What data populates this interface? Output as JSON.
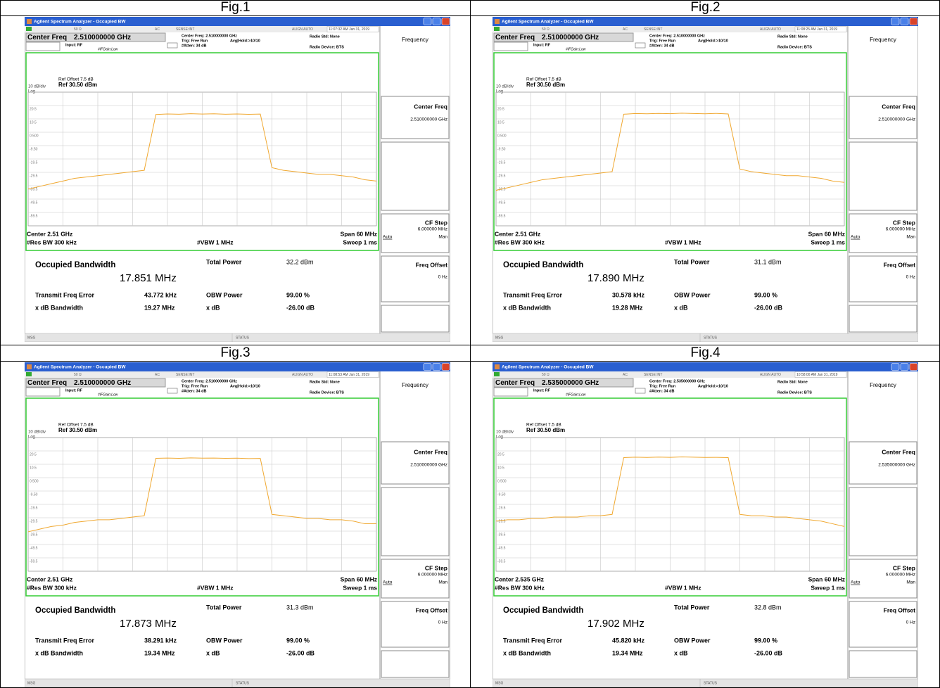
{
  "common": {
    "window_title": "Agilent Spectrum Analyzer - Occupied BW",
    "status_items": [
      "50 Ω",
      "AC",
      "SENSE:INT",
      "ALIGN AUTO"
    ],
    "center_freq_label": "Center Freq",
    "input": "Input: RF",
    "if_gain": "#IFGain:Low",
    "trig": "Trig: Free Run",
    "avg_hold": "Avg|Hold:>10/10",
    "atten": "#Atten: 34 dB",
    "radio_std": "Radio Std: None",
    "radio_device": "Radio Device: BTS",
    "ref_offset": "Ref Offset 7.5 dB",
    "scale": "10 dB/div",
    "ref_level": "Ref 30.50 dBm",
    "log": "Log",
    "res_bw": "#Res BW 300 kHz",
    "vbw": "#VBW 1 MHz",
    "span": "Span 60 MHz",
    "sweep": "Sweep 1 ms",
    "occupied_bw_label": "Occupied Bandwidth",
    "total_power_label": "Total Power",
    "freq_error_label": "Transmit Freq Error",
    "obw_power_label": "OBW Power",
    "obw_power": "99.00 %",
    "xdb_bw_label": "x dB Bandwidth",
    "xdb_label": "x dB",
    "xdb": "-26.00 dB",
    "softkeys": {
      "menu": "Frequency",
      "center_freq": "Center Freq",
      "cf_step": "CF Step",
      "cf_step_value": "6.000000 MHz",
      "auto": "Auto",
      "man": "Man",
      "freq_offset": "Freq Offset",
      "freq_offset_value": "0 Hz"
    },
    "msg": "MSG",
    "status": "STATUS",
    "ylim": [
      -69.5,
      30.5
    ],
    "yticks": [
      20.5,
      10.5,
      {
        "value": 0.5,
        "label": "0.500"
      },
      {
        "value": -9.5,
        "label": "-9.50"
      },
      -19.5,
      -29.5,
      -39.5,
      -49.5,
      -59.5
    ],
    "trace_color": "#f0a830",
    "grid": true
  },
  "panels": [
    {
      "figure": "Fig.1",
      "timestamp": "11:07:32 AM Jan 31, 2019",
      "center_freq": "2.510000000 GHz",
      "center_freq_setting": "Center Freq: 2.510000000 GHz",
      "center": "Center 2.51 GHz",
      "occupied_bw": "17.851 MHz",
      "total_power": "32.2 dBm",
      "freq_error": "43.772 kHz",
      "xdb_bw": "19.27 MHz",
      "trace": [
        -42,
        -40,
        -38,
        -36,
        -34,
        -33,
        -32,
        -31,
        -30,
        -29,
        -28,
        13.8,
        14.2,
        14.0,
        14.4,
        14.1,
        14.3,
        14.0,
        14.2,
        13.9,
        14.1,
        -26,
        -28,
        -29,
        -30,
        -31,
        -31,
        -32,
        -33,
        -35,
        -36
      ]
    },
    {
      "figure": "Fig.2",
      "timestamp": "11:08:25 AM Jan 31, 2019",
      "center_freq": "2.510000000 GHz",
      "center_freq_setting": "Center Freq: 2.510000000 GHz",
      "center": "Center 2.51 GHz",
      "occupied_bw": "17.890 MHz",
      "total_power": "31.1 dBm",
      "freq_error": "30.578 kHz",
      "xdb_bw": "19.28 MHz",
      "trace": [
        -43,
        -41,
        -39,
        -37,
        -35,
        -34,
        -33,
        -32,
        -31,
        -30,
        -29,
        14.0,
        14.5,
        14.3,
        14.6,
        14.4,
        14.8,
        14.5,
        14.3,
        14.6,
        14.2,
        -27,
        -29,
        -30,
        -31,
        -32,
        -32,
        -33,
        -34,
        -36,
        -37
      ]
    },
    {
      "figure": "Fig.3",
      "timestamp": "11:08:53 AM Jan 31, 2019",
      "center_freq": "2.510000000 GHz",
      "center_freq_setting": "Center Freq: 2.510000000 GHz",
      "center": "Center 2.51 GHz",
      "occupied_bw": "17.873 MHz",
      "total_power": "31.3 dBm",
      "freq_error": "38.291 kHz",
      "xdb_bw": "19.34 MHz",
      "trace": [
        -40,
        -38,
        -36,
        -35,
        -33,
        -32,
        -31,
        -31,
        -30,
        -29,
        -28,
        15.0,
        15.2,
        15.0,
        15.3,
        15.1,
        15.2,
        15.0,
        15.1,
        14.8,
        14.9,
        -27,
        -28,
        -29,
        -30,
        -30,
        -31,
        -31,
        -32,
        -34,
        -34
      ]
    },
    {
      "figure": "Fig.4",
      "timestamp": "10:58:00 AM Jan 31, 2019",
      "center_freq": "2.535000000 GHz",
      "center_freq_setting": "Center Freq: 2.535000000 GHz",
      "center": "Center 2.535 GHz",
      "occupied_bw": "17.902 MHz",
      "total_power": "32.8 dBm",
      "freq_error": "45.820 kHz",
      "xdb_bw": "19.34 MHz",
      "trace": [
        -32,
        -31,
        -31,
        -30,
        -30,
        -29,
        -29,
        -29,
        -28,
        -28,
        -27,
        15.5,
        15.8,
        15.6,
        15.9,
        15.7,
        16.0,
        15.8,
        15.6,
        15.7,
        15.5,
        -27,
        -28,
        -28,
        -29,
        -29,
        -30,
        -31,
        -32,
        -34,
        -36
      ]
    }
  ]
}
